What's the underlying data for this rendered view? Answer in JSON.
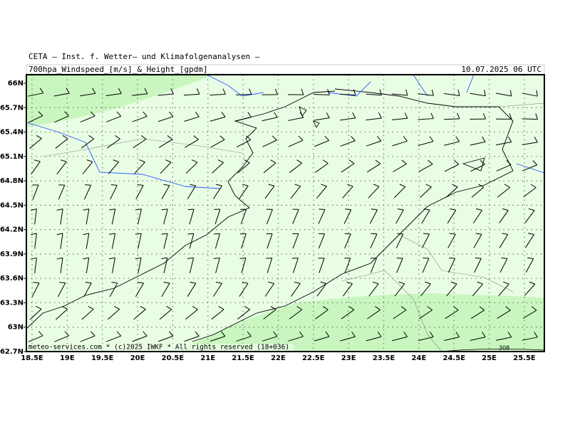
{
  "header": {
    "title": "CETA — Inst. f. Wetter— und Klimafolgenanalysen —",
    "subtitle": "700hpa_Windspeed_[m/s]_&_Height_[gpdm]",
    "date": "10.07.2025 06 UTC"
  },
  "map": {
    "lat_labels": [
      "66N",
      "65.7N",
      "65.4N",
      "65.1N",
      "64.8N",
      "64.5N",
      "64.2N",
      "63.9N",
      "63.6N",
      "63.3N",
      "63N",
      "62.7N"
    ],
    "lon_labels": [
      "18.5E",
      "19E",
      "19.5E",
      "20E",
      "20.5E",
      "21E",
      "21.5E",
      "22E",
      "22.5E",
      "23E",
      "23.5E",
      "24E",
      "24.5E",
      "25E",
      "25.5E"
    ],
    "contour_label": "308",
    "footer": "meteo-services.com * (c)2025 IWKF * All rights reserved (18+036)"
  }
}
